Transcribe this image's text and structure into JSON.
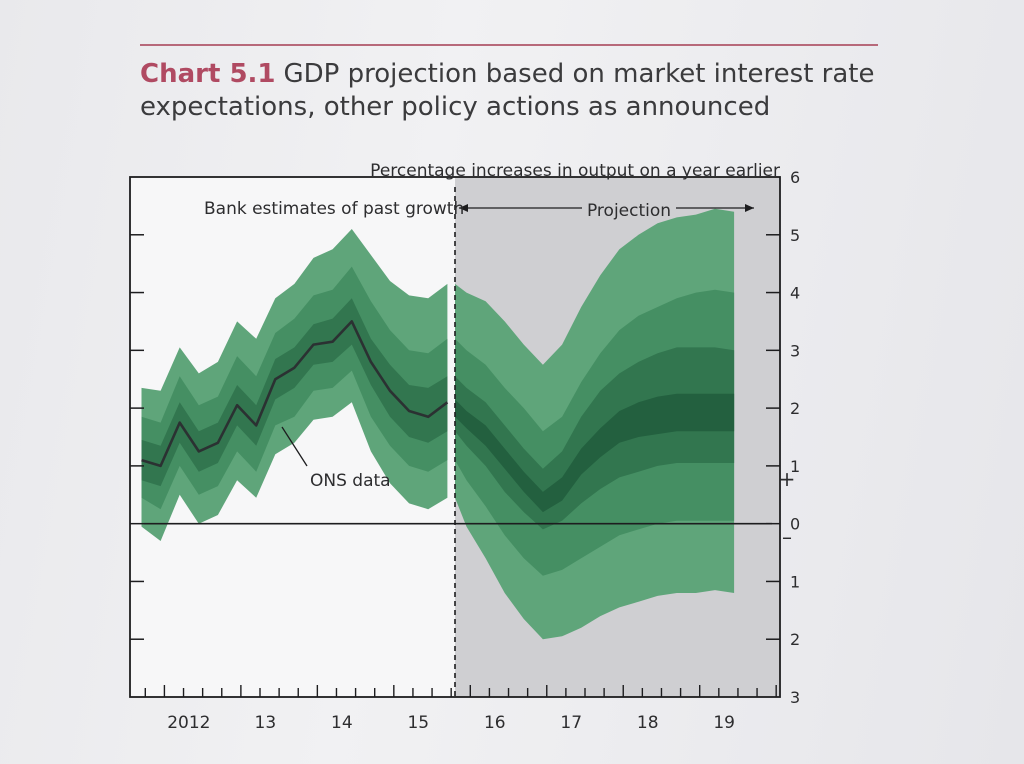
{
  "header": {
    "chart_number": "Chart 5.1",
    "title": "GDP projection based on market interest rate expectations, other policy actions as announced"
  },
  "chart_data": {
    "type": "area",
    "subtitle": "Percentage increases in output on a year earlier",
    "annotations": {
      "past": "Bank estimates of past growth",
      "projection": "Projection",
      "ons": "ONS data"
    },
    "xlim": [
      2011.6,
      2020.1
    ],
    "ylim": [
      -3,
      6
    ],
    "x_tick_labels": [
      {
        "x": 2012.05,
        "label": "2012"
      },
      {
        "x": 2013.05,
        "label": "13"
      },
      {
        "x": 2014.05,
        "label": "14"
      },
      {
        "x": 2015.05,
        "label": "15"
      },
      {
        "x": 2016.05,
        "label": "16"
      },
      {
        "x": 2017.05,
        "label": "17"
      },
      {
        "x": 2018.05,
        "label": "18"
      },
      {
        "x": 2019.05,
        "label": "19"
      }
    ],
    "y_tick_labels": [
      {
        "y": 6,
        "label": "6"
      },
      {
        "y": 5,
        "label": "5"
      },
      {
        "y": 4,
        "label": "4"
      },
      {
        "y": 3,
        "label": "3"
      },
      {
        "y": 2,
        "label": "2"
      },
      {
        "y": 1,
        "label": "1"
      },
      {
        "y": 0,
        "label": "0"
      },
      {
        "y": -1,
        "label": "1"
      },
      {
        "y": -2,
        "label": "2"
      },
      {
        "y": -3,
        "label": "3"
      }
    ],
    "sign_marks": {
      "plus": "+",
      "minus": "–"
    },
    "projection_start": 2015.85,
    "x": [
      2011.75,
      2012.0,
      2012.25,
      2012.5,
      2012.75,
      2013.0,
      2013.25,
      2013.5,
      2013.75,
      2014.0,
      2014.25,
      2014.5,
      2014.75,
      2015.0,
      2015.25,
      2015.5,
      2015.75
    ],
    "ons_data": [
      1.1,
      1.0,
      1.75,
      1.25,
      1.4,
      2.05,
      1.7,
      2.5,
      2.7,
      3.1,
      3.15,
      3.5,
      2.8,
      2.3,
      1.95,
      1.85,
      2.1
    ],
    "fan_series": [
      {
        "upper": [
          2.35,
          2.3,
          3.05,
          2.6,
          2.8,
          3.5,
          3.2,
          3.9,
          4.15,
          4.6,
          4.75,
          5.1,
          4.65,
          4.2,
          3.95,
          3.9,
          4.15
        ],
        "lower": [
          -0.05,
          -0.3,
          0.5,
          0.0,
          0.15,
          0.75,
          0.45,
          1.2,
          1.4,
          1.8,
          1.85,
          2.1,
          1.25,
          0.7,
          0.35,
          0.25,
          0.45
        ]
      },
      {
        "upper": [
          1.85,
          1.75,
          2.55,
          2.05,
          2.2,
          2.9,
          2.55,
          3.3,
          3.55,
          3.95,
          4.05,
          4.45,
          3.85,
          3.35,
          3.0,
          2.95,
          3.2
        ],
        "lower": [
          0.45,
          0.25,
          1.0,
          0.5,
          0.65,
          1.25,
          0.9,
          1.7,
          1.85,
          2.3,
          2.35,
          2.65,
          1.85,
          1.35,
          1.0,
          0.9,
          1.1
        ]
      },
      {
        "upper": [
          1.45,
          1.35,
          2.1,
          1.6,
          1.75,
          2.4,
          2.05,
          2.85,
          3.05,
          3.45,
          3.55,
          3.9,
          3.2,
          2.75,
          2.4,
          2.35,
          2.55
        ],
        "lower": [
          0.75,
          0.65,
          1.4,
          0.9,
          1.05,
          1.7,
          1.35,
          2.15,
          2.35,
          2.75,
          2.8,
          3.1,
          2.4,
          1.85,
          1.5,
          1.4,
          1.6
        ]
      }
    ],
    "projection_x": [
      2015.85,
      2016.0,
      2016.25,
      2016.5,
      2016.75,
      2017.0,
      2017.25,
      2017.5,
      2017.75,
      2018.0,
      2018.25,
      2018.5,
      2018.75,
      2019.0,
      2019.25,
      2019.5
    ],
    "projection_fans": [
      {
        "upper": [
          4.15,
          4.0,
          3.85,
          3.5,
          3.1,
          2.75,
          3.1,
          3.75,
          4.3,
          4.75,
          5.0,
          5.2,
          5.3,
          5.35,
          5.45,
          5.4
        ],
        "lower": [
          0.45,
          -0.05,
          -0.6,
          -1.2,
          -1.65,
          -2.0,
          -1.95,
          -1.8,
          -1.6,
          -1.45,
          -1.35,
          -1.25,
          -1.2,
          -1.2,
          -1.15,
          -1.2
        ]
      },
      {
        "upper": [
          3.2,
          3.0,
          2.75,
          2.35,
          2.0,
          1.6,
          1.85,
          2.45,
          2.95,
          3.35,
          3.6,
          3.75,
          3.9,
          4.0,
          4.05,
          4.0
        ],
        "lower": [
          1.1,
          0.75,
          0.3,
          -0.2,
          -0.6,
          -0.9,
          -0.8,
          -0.6,
          -0.4,
          -0.2,
          -0.1,
          0.0,
          0.05,
          0.05,
          0.05,
          0.05
        ]
      },
      {
        "upper": [
          2.55,
          2.35,
          2.1,
          1.7,
          1.3,
          0.95,
          1.25,
          1.85,
          2.3,
          2.6,
          2.8,
          2.95,
          3.05,
          3.05,
          3.05,
          3.0
        ],
        "lower": [
          1.6,
          1.35,
          1.0,
          0.55,
          0.2,
          -0.1,
          0.05,
          0.35,
          0.6,
          0.8,
          0.9,
          1.0,
          1.05,
          1.05,
          1.05,
          1.05
        ]
      },
      {
        "upper": [
          2.15,
          1.95,
          1.7,
          1.3,
          0.9,
          0.55,
          0.8,
          1.3,
          1.65,
          1.95,
          2.1,
          2.2,
          2.25,
          2.25,
          2.25,
          2.25
        ],
        "lower": [
          1.85,
          1.65,
          1.35,
          0.95,
          0.55,
          0.2,
          0.4,
          0.85,
          1.15,
          1.4,
          1.5,
          1.55,
          1.6,
          1.6,
          1.6,
          1.6
        ]
      }
    ],
    "colors": {
      "light": "#5fa57a",
      "mid": "#458f63",
      "dark": "#32764f",
      "darker": "#23603f",
      "line": "#2b3132",
      "shade": "#cfcfd2",
      "axis": "#1d1d1f"
    }
  }
}
